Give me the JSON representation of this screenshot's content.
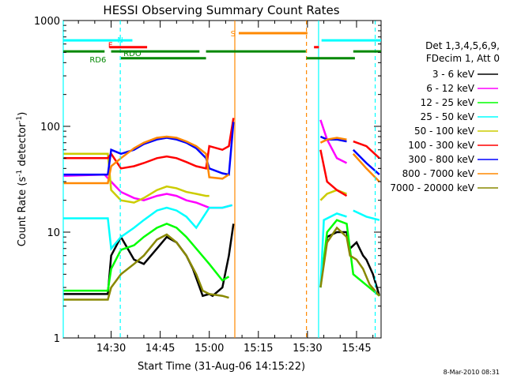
{
  "chart_data": {
    "type": "line",
    "title": "HESSI Observing Summary Count Rates",
    "xlabel": "Start Time (31-Aug-06 14:15:22)",
    "ylabel_main": "Count Rate (s",
    "ylabel_sup1": "-1",
    "ylabel_mid": " detector",
    "ylabel_sup2": "-1",
    "ylabel_end": ")",
    "x_tick_labels": [
      "14:30",
      "14:45",
      "15:00",
      "15:15",
      "15:30",
      "15:45"
    ],
    "x_tick_minutes": [
      30,
      45,
      60,
      75,
      90,
      105
    ],
    "xlim_minutes": [
      15.37,
      112.5
    ],
    "y_tick_labels": [
      "1",
      "10",
      "100",
      "1000"
    ],
    "y_tick_values": [
      1,
      10,
      100,
      1000
    ],
    "ylim": [
      1,
      1000
    ],
    "ylog": true,
    "legend_header": [
      "Det 1,3,4,5,6,9,",
      "FDecim 1, Att 0"
    ],
    "legend_placement": "right",
    "series": [
      {
        "name": "3 - 6 keV",
        "color": "#000000",
        "points": [
          [
            15.4,
            2.6
          ],
          [
            29,
            2.6
          ],
          [
            30,
            6
          ],
          [
            33,
            9
          ],
          [
            37,
            5.5
          ],
          [
            40,
            5
          ],
          [
            44,
            7
          ],
          [
            47,
            9
          ],
          [
            50,
            8
          ],
          [
            53,
            6
          ],
          [
            55,
            4.5
          ],
          [
            58,
            2.5
          ],
          [
            60,
            2.6
          ],
          [
            61,
            2.5
          ],
          [
            64,
            3
          ],
          [
            66,
            6
          ],
          [
            67.4,
            12
          ],
          [
            67.4,
            null
          ],
          [
            95.5,
            7
          ],
          [
            96,
            9
          ],
          [
            99,
            10
          ],
          [
            102,
            10
          ],
          [
            103,
            7
          ],
          [
            105,
            8
          ],
          [
            107,
            6
          ],
          [
            108,
            5.5
          ],
          [
            110,
            4
          ],
          [
            112,
            2.5
          ]
        ]
      },
      {
        "name": "6 - 12 keV",
        "color": "#ff00ff",
        "points": [
          [
            15.4,
            34
          ],
          [
            28,
            35
          ],
          [
            30,
            30
          ],
          [
            33,
            24
          ],
          [
            37,
            21
          ],
          [
            40,
            20
          ],
          [
            44,
            22
          ],
          [
            47,
            23
          ],
          [
            50,
            22
          ],
          [
            53,
            20
          ],
          [
            56,
            19
          ],
          [
            60,
            17
          ],
          [
            64,
            17
          ],
          [
            67,
            18
          ],
          [
            67.4,
            null
          ],
          [
            94,
            115
          ],
          [
            96,
            75
          ],
          [
            99,
            50
          ],
          [
            102,
            45
          ],
          [
            103,
            null
          ]
        ]
      },
      {
        "name": "12 - 25 keV",
        "color": "#00ff00",
        "points": [
          [
            15.4,
            2.8
          ],
          [
            29,
            2.8
          ],
          [
            30,
            4.5
          ],
          [
            33,
            6.8
          ],
          [
            37,
            7.5
          ],
          [
            40,
            9
          ],
          [
            44,
            11
          ],
          [
            47,
            12
          ],
          [
            50,
            11
          ],
          [
            53,
            9
          ],
          [
            56,
            7
          ],
          [
            60,
            5
          ],
          [
            64,
            3.5
          ],
          [
            66,
            3.8
          ],
          [
            67.4,
            null
          ],
          [
            94,
            3
          ],
          [
            96,
            10
          ],
          [
            99,
            13
          ],
          [
            102,
            12
          ],
          [
            104,
            4
          ],
          [
            112,
            2.5
          ]
        ]
      },
      {
        "name": "25 - 50 keV",
        "color": "#00ffff",
        "points": [
          [
            15.4,
            13.5
          ],
          [
            29,
            13.5
          ],
          [
            30,
            7
          ],
          [
            33,
            9
          ],
          [
            37,
            11
          ],
          [
            40,
            13
          ],
          [
            44,
            16
          ],
          [
            47,
            17
          ],
          [
            50,
            16
          ],
          [
            53,
            14
          ],
          [
            56,
            11
          ],
          [
            60,
            17
          ],
          [
            64,
            17
          ],
          [
            67,
            18
          ],
          [
            67.4,
            null
          ],
          [
            94,
            3
          ],
          [
            95,
            13
          ],
          [
            99,
            15
          ],
          [
            102,
            14
          ],
          [
            103,
            null
          ],
          [
            104,
            16
          ],
          [
            108,
            14
          ],
          [
            112,
            13
          ]
        ]
      },
      {
        "name": "50 - 100 keV",
        "color": "#cccc00",
        "points": [
          [
            15.4,
            55
          ],
          [
            29,
            55
          ],
          [
            30,
            25
          ],
          [
            33,
            20
          ],
          [
            37,
            19
          ],
          [
            40,
            21
          ],
          [
            44,
            25
          ],
          [
            47,
            27
          ],
          [
            50,
            26
          ],
          [
            53,
            24
          ],
          [
            56,
            23
          ],
          [
            59,
            22
          ],
          [
            60,
            22
          ],
          [
            67.4,
            null
          ],
          [
            94,
            20
          ],
          [
            96,
            23
          ],
          [
            99,
            25
          ],
          [
            102,
            23
          ],
          [
            103,
            null
          ]
        ]
      },
      {
        "name": "100 - 300 keV",
        "color": "#ff0000",
        "points": [
          [
            15.4,
            50
          ],
          [
            29,
            50
          ],
          [
            30,
            55
          ],
          [
            33,
            40
          ],
          [
            37,
            42
          ],
          [
            40,
            45
          ],
          [
            44,
            50
          ],
          [
            47,
            52
          ],
          [
            50,
            50
          ],
          [
            53,
            46
          ],
          [
            56,
            42
          ],
          [
            59,
            40
          ],
          [
            60,
            65
          ],
          [
            64,
            60
          ],
          [
            66,
            65
          ],
          [
            67.4,
            120
          ],
          [
            67.4,
            null
          ],
          [
            94,
            60
          ],
          [
            96,
            30
          ],
          [
            99,
            25
          ],
          [
            102,
            22
          ],
          [
            103,
            null
          ],
          [
            104,
            72
          ],
          [
            108,
            65
          ],
          [
            112,
            50
          ]
        ]
      },
      {
        "name": "300 - 800 keV",
        "color": "#0000ff",
        "points": [
          [
            15.4,
            35
          ],
          [
            29,
            35
          ],
          [
            30,
            60
          ],
          [
            33,
            55
          ],
          [
            37,
            60
          ],
          [
            40,
            68
          ],
          [
            44,
            75
          ],
          [
            47,
            78
          ],
          [
            50,
            75
          ],
          [
            53,
            70
          ],
          [
            56,
            62
          ],
          [
            59,
            50
          ],
          [
            60,
            40
          ],
          [
            64,
            36
          ],
          [
            66,
            35
          ],
          [
            67.4,
            110
          ],
          [
            67.4,
            null
          ],
          [
            94,
            80
          ],
          [
            96,
            75
          ],
          [
            99,
            75
          ],
          [
            102,
            72
          ],
          [
            103,
            null
          ],
          [
            104,
            60
          ],
          [
            108,
            45
          ],
          [
            112,
            35
          ]
        ]
      },
      {
        "name": "800 - 7000 keV",
        "color": "#ff8800",
        "points": [
          [
            15.4,
            29
          ],
          [
            29,
            29
          ],
          [
            30,
            42
          ],
          [
            33,
            50
          ],
          [
            37,
            62
          ],
          [
            40,
            70
          ],
          [
            44,
            78
          ],
          [
            47,
            80
          ],
          [
            50,
            78
          ],
          [
            53,
            72
          ],
          [
            56,
            65
          ],
          [
            59,
            55
          ],
          [
            60,
            33
          ],
          [
            64,
            32
          ],
          [
            66,
            35
          ],
          [
            67.4,
            null
          ],
          [
            94,
            70
          ],
          [
            96,
            75
          ],
          [
            99,
            78
          ],
          [
            102,
            75
          ],
          [
            103,
            null
          ],
          [
            104,
            55
          ],
          [
            108,
            40
          ],
          [
            112,
            30
          ]
        ]
      },
      {
        "name": "7000 - 20000 keV",
        "color": "#888800",
        "points": [
          [
            15.4,
            2.3
          ],
          [
            29,
            2.3
          ],
          [
            30,
            3
          ],
          [
            33,
            4
          ],
          [
            37,
            5
          ],
          [
            40,
            6
          ],
          [
            44,
            8.5
          ],
          [
            47,
            9.5
          ],
          [
            50,
            8
          ],
          [
            53,
            6
          ],
          [
            56,
            4
          ],
          [
            58,
            2.8
          ],
          [
            60,
            2.6
          ],
          [
            64,
            2.5
          ],
          [
            66,
            2.4
          ],
          [
            67.4,
            null
          ],
          [
            94,
            3
          ],
          [
            96,
            8
          ],
          [
            99,
            11
          ],
          [
            102,
            9
          ],
          [
            103,
            6
          ],
          [
            105,
            5.5
          ],
          [
            107,
            4.5
          ],
          [
            109,
            3.2
          ],
          [
            112,
            2.5
          ]
        ]
      }
    ],
    "vertical_markers": [
      {
        "minute": 15.37,
        "color": "#00ffff",
        "style": "solid"
      },
      {
        "minute": 32.8,
        "color": "#00ffff",
        "style": "dashed"
      },
      {
        "minute": 67.8,
        "color": "#ff8800",
        "style": "solid"
      },
      {
        "minute": 89.7,
        "color": "#ff8800",
        "style": "dashed"
      },
      {
        "minute": 93.4,
        "color": "#00ffff",
        "style": "solid"
      },
      {
        "minute": 110.7,
        "color": "#00ffff",
        "style": "dashed"
      }
    ],
    "flag_bars": [
      {
        "label": "N",
        "color": "#00ffff",
        "y": 650,
        "segments": [
          [
            15.4,
            36.5
          ],
          [
            94.3,
            112.5
          ]
        ]
      },
      {
        "label": "S",
        "color": "#ff8800",
        "y": 760,
        "segments": [
          [
            69,
            90
          ]
        ]
      },
      {
        "label": "F",
        "color": "#ff0000",
        "y": 560,
        "segments": [
          [
            29.5,
            41
          ],
          [
            92,
            93.5
          ]
        ]
      },
      {
        "label": "RDO",
        "color": "#008800",
        "y": 510,
        "segments": [
          [
            15.4,
            28
          ],
          [
            30,
            57
          ],
          [
            59,
            89.5
          ],
          [
            104,
            112.5
          ]
        ]
      },
      {
        "label": "RD6",
        "color": "#008800",
        "y": 440,
        "segments": [
          [
            33,
            59
          ],
          [
            89.7,
            104.5
          ]
        ]
      }
    ]
  },
  "timestamp": "8-Mar-2010 08:31"
}
